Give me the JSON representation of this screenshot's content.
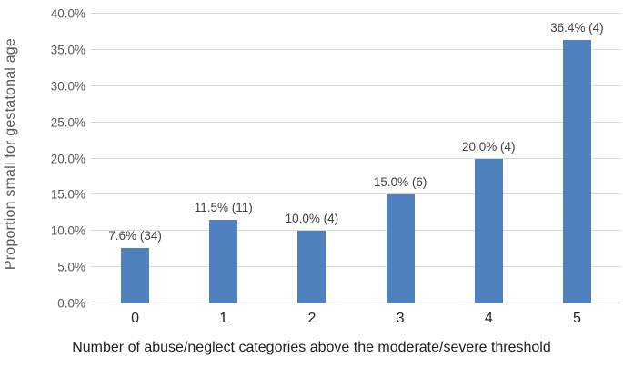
{
  "chart_data": {
    "type": "bar",
    "title": "",
    "categories": [
      "0",
      "1",
      "2",
      "3",
      "4",
      "5"
    ],
    "values": [
      7.6,
      11.5,
      10.0,
      15.0,
      20.0,
      36.4
    ],
    "counts": [
      34,
      11,
      4,
      6,
      4,
      4
    ],
    "bar_labels": [
      "7.6% (34)",
      "11.5% (11)",
      "10.0% (4)",
      "15.0% (6)",
      "20.0% (4)",
      "36.4% (4)"
    ],
    "xlabel": "Number of abuse/neglect categories above the moderate/severe threshold",
    "ylabel": "Proportion small for gestatonal age",
    "ylim": [
      0,
      40
    ],
    "ytick_step": 5,
    "ytick_labels": [
      "0.0%",
      "5.0%",
      "10.0%",
      "15.0%",
      "20.0%",
      "25.0%",
      "30.0%",
      "35.0%",
      "40.0%"
    ],
    "grid": true,
    "legend": false,
    "colors": {
      "bar": "#4E81BD",
      "gridline": "#D9D9D9",
      "axis_line": "#BFBFBF",
      "tick_text": "#595959",
      "data_label_text": "#404040",
      "category_text": "#1F1F1F",
      "background": "#FFFFFF"
    }
  }
}
